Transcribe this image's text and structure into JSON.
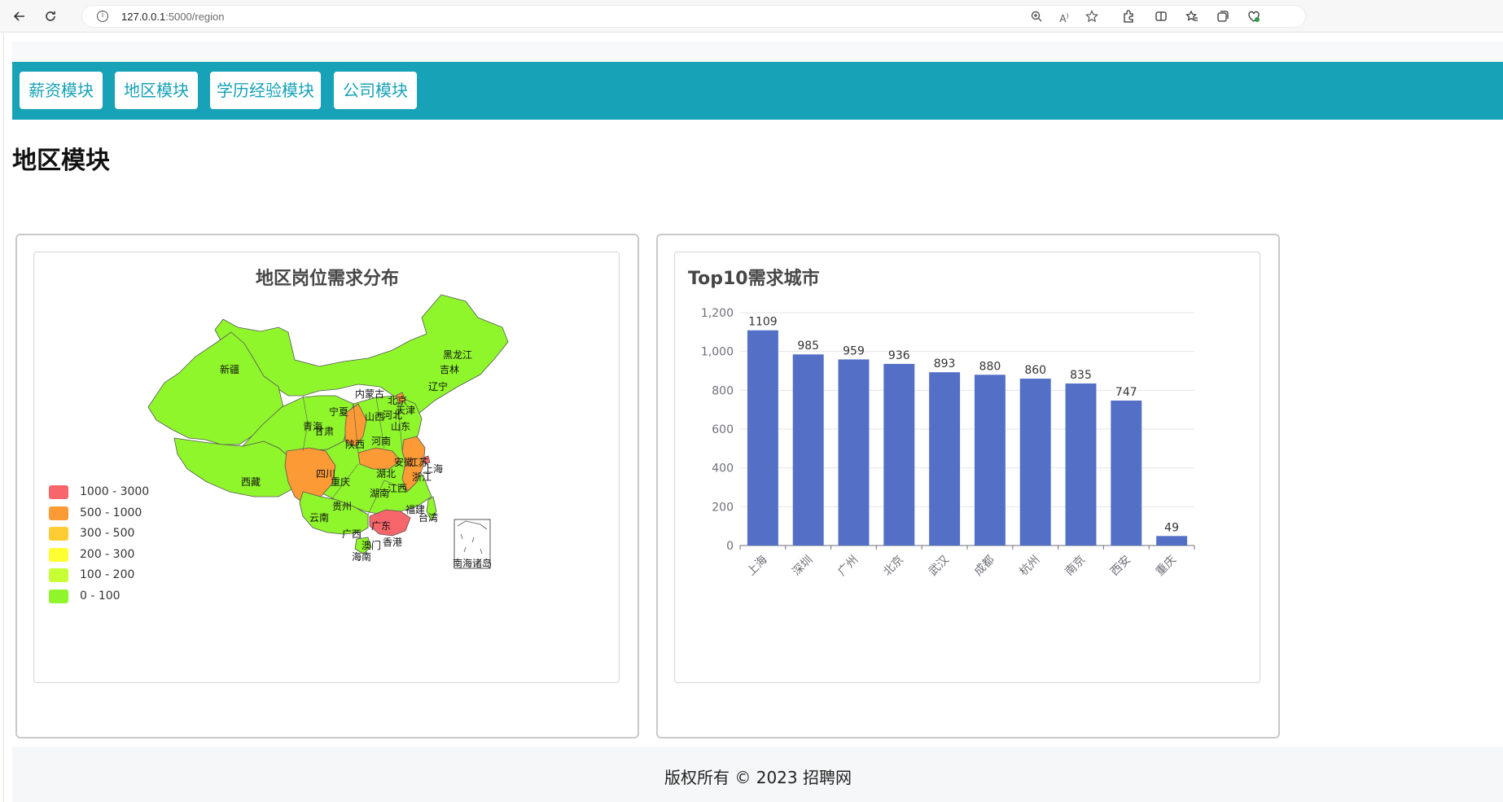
{
  "browser": {
    "url_host": "127.0.0.1",
    "url_path": ":5000/region"
  },
  "nav": {
    "items": [
      "薪资模块",
      "地区模块",
      "学历经验模块",
      "公司模块"
    ]
  },
  "page_title": "地区模块",
  "map_panel": {
    "title": "地区岗位需求分布",
    "legend": [
      {
        "label": "1000 - 3000",
        "color": "#f6666a"
      },
      {
        "label": "500 - 1000",
        "color": "#fc9a36"
      },
      {
        "label": "300 - 500",
        "color": "#ffcc33"
      },
      {
        "label": "200 - 300",
        "color": "#ffff33"
      },
      {
        "label": "100 - 200",
        "color": "#c6ff33"
      },
      {
        "label": "0 - 100",
        "color": "#90f62c"
      }
    ],
    "province_labels": [
      "黑龙江",
      "吉林",
      "辽宁",
      "内蒙古",
      "北京",
      "天津",
      "河北",
      "山西",
      "山东",
      "宁夏",
      "青海",
      "甘肃",
      "陕西",
      "河南",
      "新疆",
      "西藏",
      "四川",
      "重庆",
      "湖北",
      "安徽",
      "江苏",
      "上海",
      "浙江",
      "湖南",
      "江西",
      "贵州",
      "云南",
      "广西",
      "广东",
      "福建",
      "台湾",
      "澳门",
      "香港",
      "海南",
      "南海诸岛"
    ]
  },
  "bar_panel": {
    "title": "Top10需求城市"
  },
  "chart_data": {
    "type": "bar",
    "title": "Top10需求城市",
    "categories": [
      "上海",
      "深圳",
      "广州",
      "北京",
      "武汉",
      "成都",
      "杭州",
      "南京",
      "西安",
      "重庆"
    ],
    "values": [
      1109,
      985,
      959,
      936,
      893,
      880,
      860,
      835,
      747,
      49
    ],
    "ylim": [
      0,
      1200
    ],
    "yticks": [
      "0",
      "200",
      "400",
      "600",
      "800",
      "1,000",
      "1,200"
    ],
    "bar_color": "#5470c6",
    "grid": true
  },
  "footer": {
    "text": "版权所有 © 2023 招聘网"
  }
}
